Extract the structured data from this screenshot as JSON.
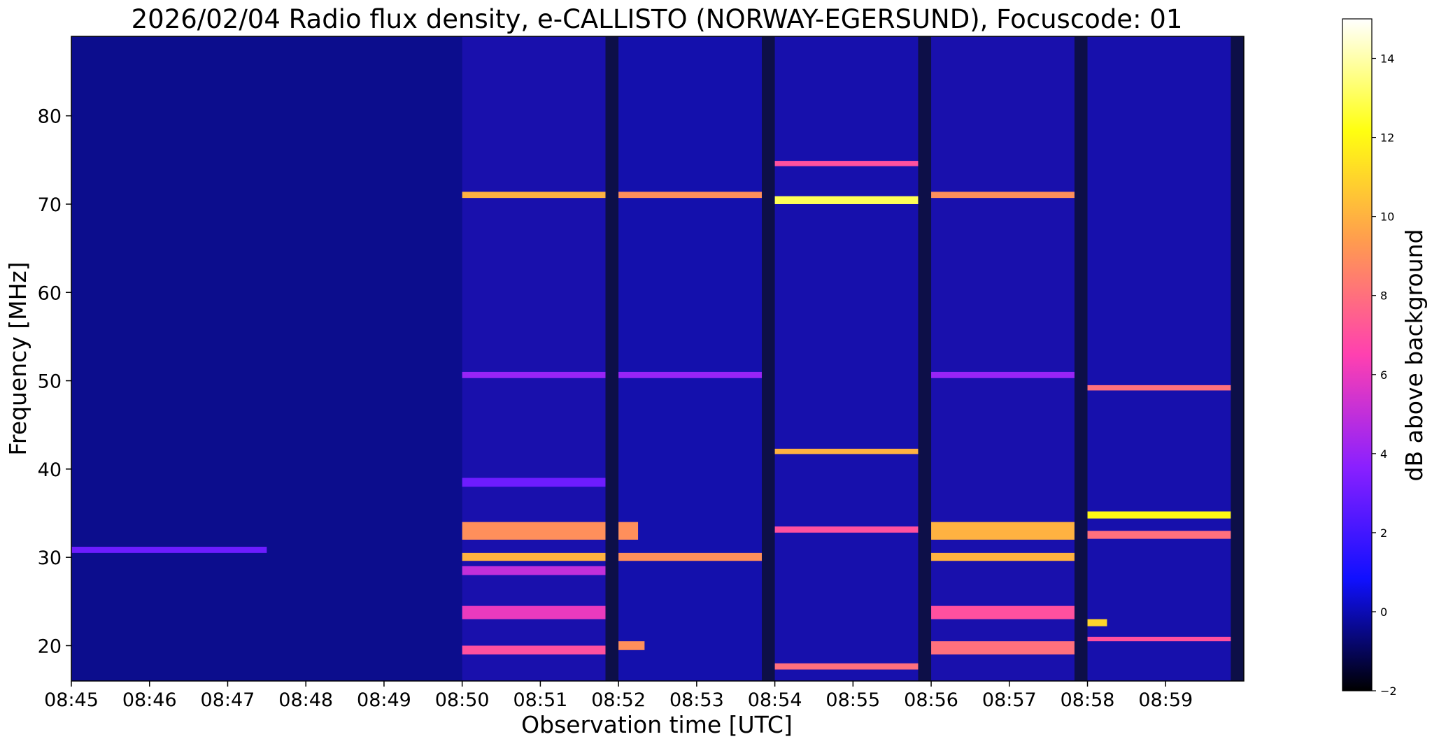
{
  "chart_data": {
    "type": "heatmap",
    "title": "2026/02/04  Radio flux density, e-CALLISTO (NORWAY-EGERSUND), Focuscode: 01",
    "xlabel": "Observation time [UTC]",
    "ylabel": "Frequency [MHz]",
    "colorbar_label": "dB above background",
    "colormap": "gnuplot2",
    "colormap_stops": [
      "#000000",
      "#1010ff",
      "#8a20ff",
      "#ff40b0",
      "#ff9a50",
      "#ffff10",
      "#ffffff"
    ],
    "xlim": [
      "08:45",
      "09:00"
    ],
    "ylim": [
      16,
      89
    ],
    "clim": [
      -2,
      15
    ],
    "x_ticks": [
      "08:45",
      "08:46",
      "08:47",
      "08:48",
      "08:49",
      "08:50",
      "08:51",
      "08:52",
      "08:53",
      "08:54",
      "08:55",
      "08:56",
      "08:57",
      "08:58",
      "08:59"
    ],
    "y_ticks": [
      20,
      30,
      40,
      50,
      60,
      70,
      80
    ],
    "colorbar_ticks": [
      -2,
      0,
      2,
      4,
      6,
      8,
      10,
      12,
      14
    ],
    "background_db": 0.3,
    "scan_segments": [
      {
        "start": "08:45:00",
        "end": "08:50:00",
        "level_db": 0.2
      },
      {
        "start": "08:50:00",
        "end": "08:51:50",
        "level_db": 1.3
      },
      {
        "start": "08:52:00",
        "end": "08:53:50",
        "level_db": 1.1
      },
      {
        "start": "08:54:00",
        "end": "08:55:50",
        "level_db": 1.2
      },
      {
        "start": "08:56:00",
        "end": "08:57:50",
        "level_db": 1.3
      },
      {
        "start": "08:58:00",
        "end": "08:59:50",
        "level_db": 1.2
      }
    ],
    "emission_bands": [
      {
        "start": "08:50:00",
        "end": "08:51:50",
        "f_low_mhz": 70.7,
        "f_high_mhz": 71.4,
        "db": 10
      },
      {
        "start": "08:50:00",
        "end": "08:51:50",
        "f_low_mhz": 50.3,
        "f_high_mhz": 51.0,
        "db": 4
      },
      {
        "start": "08:50:00",
        "end": "08:51:50",
        "f_low_mhz": 38.0,
        "f_high_mhz": 39.0,
        "db": 3
      },
      {
        "start": "08:50:00",
        "end": "08:51:50",
        "f_low_mhz": 32.0,
        "f_high_mhz": 34.0,
        "db": 9
      },
      {
        "start": "08:50:00",
        "end": "08:51:50",
        "f_low_mhz": 29.6,
        "f_high_mhz": 30.5,
        "db": 10
      },
      {
        "start": "08:50:00",
        "end": "08:51:50",
        "f_low_mhz": 28.0,
        "f_high_mhz": 29.0,
        "db": 5
      },
      {
        "start": "08:50:00",
        "end": "08:51:50",
        "f_low_mhz": 23.0,
        "f_high_mhz": 24.5,
        "db": 6
      },
      {
        "start": "08:50:00",
        "end": "08:51:50",
        "f_low_mhz": 19.0,
        "f_high_mhz": 20.0,
        "db": 7
      },
      {
        "start": "08:52:00",
        "end": "08:53:50",
        "f_low_mhz": 70.7,
        "f_high_mhz": 71.4,
        "db": 9
      },
      {
        "start": "08:52:00",
        "end": "08:53:50",
        "f_low_mhz": 50.3,
        "f_high_mhz": 51.0,
        "db": 4
      },
      {
        "start": "08:52:00",
        "end": "08:52:15",
        "f_low_mhz": 32.0,
        "f_high_mhz": 34.0,
        "db": 9
      },
      {
        "start": "08:52:00",
        "end": "08:53:50",
        "f_low_mhz": 29.6,
        "f_high_mhz": 30.5,
        "db": 9
      },
      {
        "start": "08:52:00",
        "end": "08:52:20",
        "f_low_mhz": 19.5,
        "f_high_mhz": 20.5,
        "db": 9
      },
      {
        "start": "08:54:00",
        "end": "08:55:50",
        "f_low_mhz": 74.3,
        "f_high_mhz": 74.9,
        "db": 7
      },
      {
        "start": "08:54:00",
        "end": "08:55:50",
        "f_low_mhz": 70.0,
        "f_high_mhz": 70.9,
        "db": 13
      },
      {
        "start": "08:54:00",
        "end": "08:55:50",
        "f_low_mhz": 41.7,
        "f_high_mhz": 42.3,
        "db": 10
      },
      {
        "start": "08:54:00",
        "end": "08:55:50",
        "f_low_mhz": 32.8,
        "f_high_mhz": 33.5,
        "db": 7
      },
      {
        "start": "08:54:00",
        "end": "08:55:50",
        "f_low_mhz": 17.3,
        "f_high_mhz": 18.0,
        "db": 8
      },
      {
        "start": "08:56:00",
        "end": "08:57:50",
        "f_low_mhz": 70.7,
        "f_high_mhz": 71.4,
        "db": 9
      },
      {
        "start": "08:56:00",
        "end": "08:57:50",
        "f_low_mhz": 50.3,
        "f_high_mhz": 51.0,
        "db": 4
      },
      {
        "start": "08:56:00",
        "end": "08:57:50",
        "f_low_mhz": 32.0,
        "f_high_mhz": 34.0,
        "db": 10
      },
      {
        "start": "08:56:00",
        "end": "08:57:50",
        "f_low_mhz": 29.6,
        "f_high_mhz": 30.5,
        "db": 10
      },
      {
        "start": "08:56:00",
        "end": "08:57:50",
        "f_low_mhz": 23.0,
        "f_high_mhz": 24.5,
        "db": 7
      },
      {
        "start": "08:56:00",
        "end": "08:57:50",
        "f_low_mhz": 19.0,
        "f_high_mhz": 20.5,
        "db": 8
      },
      {
        "start": "08:58:00",
        "end": "08:59:50",
        "f_low_mhz": 48.9,
        "f_high_mhz": 49.5,
        "db": 8
      },
      {
        "start": "08:58:00",
        "end": "08:59:50",
        "f_low_mhz": 34.4,
        "f_high_mhz": 35.2,
        "db": 12
      },
      {
        "start": "08:58:00",
        "end": "08:59:50",
        "f_low_mhz": 32.1,
        "f_high_mhz": 33.0,
        "db": 8
      },
      {
        "start": "08:58:00",
        "end": "08:58:15",
        "f_low_mhz": 22.2,
        "f_high_mhz": 23.0,
        "db": 11
      },
      {
        "start": "08:58:00",
        "end": "08:59:50",
        "f_low_mhz": 20.5,
        "f_high_mhz": 21.0,
        "db": 7
      },
      {
        "start": "08:45:00",
        "end": "08:47:30",
        "f_low_mhz": 30.5,
        "f_high_mhz": 31.2,
        "db": 3
      }
    ]
  }
}
